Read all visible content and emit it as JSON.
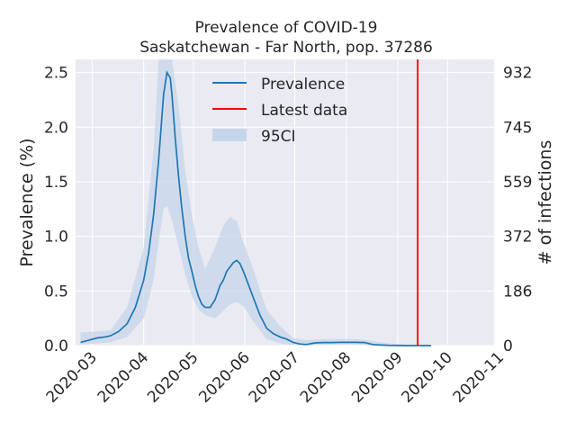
{
  "chart_data": {
    "type": "line",
    "title": "Prevalence of COVID-19",
    "subtitle": "Saskatchewan - Far North, pop. 37286",
    "xlabel": "",
    "ylabel": "Prevalence (%)",
    "y2label": "# of infections",
    "xlim": [
      "2020-02-20",
      "2020-10-29"
    ],
    "ylim": [
      0,
      2.62
    ],
    "x_ticks": [
      "2020-03",
      "2020-04",
      "2020-05",
      "2020-06",
      "2020-07",
      "2020-08",
      "2020-09",
      "2020-10",
      "2020-11"
    ],
    "y_ticks": [
      "0.0",
      "0.5",
      "1.0",
      "1.5",
      "2.0",
      "2.5"
    ],
    "y2_ticks": [
      "0",
      "186",
      "372",
      "559",
      "745",
      "932"
    ],
    "grid": true,
    "legend": {
      "placement": "top-center",
      "entries": [
        {
          "label": "Prevalence",
          "color": "#1f77b4",
          "kind": "line"
        },
        {
          "label": "Latest data",
          "color": "#ff0000",
          "kind": "line"
        },
        {
          "label": "95CI",
          "color": "#c6d6ea",
          "kind": "patch"
        }
      ]
    },
    "latest_data_x": "2020-09-13",
    "series": [
      {
        "name": "Prevalence",
        "color": "#1f77b4",
        "x": [
          "2020-02-23",
          "2020-02-28",
          "2020-03-04",
          "2020-03-09",
          "2020-03-12",
          "2020-03-17",
          "2020-03-22",
          "2020-03-27",
          "2020-04-01",
          "2020-04-04",
          "2020-04-07",
          "2020-04-10",
          "2020-04-13",
          "2020-04-15",
          "2020-04-17",
          "2020-04-18",
          "2020-04-19",
          "2020-04-20",
          "2020-04-22",
          "2020-04-24",
          "2020-04-26",
          "2020-04-28",
          "2020-04-30",
          "2020-05-02",
          "2020-05-04",
          "2020-05-06",
          "2020-05-08",
          "2020-05-11",
          "2020-05-14",
          "2020-05-17",
          "2020-05-19",
          "2020-05-21",
          "2020-05-23",
          "2020-05-25",
          "2020-05-27",
          "2020-05-29",
          "2020-05-31",
          "2020-06-02",
          "2020-06-04",
          "2020-06-06",
          "2020-06-08",
          "2020-06-10",
          "2020-06-12",
          "2020-06-14",
          "2020-06-18",
          "2020-06-22",
          "2020-06-26",
          "2020-06-30",
          "2020-07-04",
          "2020-07-08",
          "2020-07-13",
          "2020-07-18",
          "2020-07-23",
          "2020-07-28",
          "2020-08-02",
          "2020-08-07",
          "2020-08-12",
          "2020-08-17",
          "2020-08-22",
          "2020-08-27",
          "2020-09-01",
          "2020-09-06",
          "2020-09-11",
          "2020-09-16",
          "2020-09-21"
        ],
        "values": [
          0.03,
          0.05,
          0.07,
          0.08,
          0.09,
          0.13,
          0.2,
          0.35,
          0.6,
          0.85,
          1.2,
          1.7,
          2.3,
          2.5,
          2.45,
          2.3,
          2.1,
          1.9,
          1.55,
          1.25,
          1.0,
          0.8,
          0.68,
          0.55,
          0.45,
          0.38,
          0.35,
          0.35,
          0.42,
          0.55,
          0.6,
          0.68,
          0.72,
          0.76,
          0.78,
          0.75,
          0.68,
          0.6,
          0.52,
          0.44,
          0.36,
          0.28,
          0.22,
          0.16,
          0.11,
          0.08,
          0.06,
          0.03,
          0.015,
          0.01,
          0.025,
          0.028,
          0.028,
          0.03,
          0.03,
          0.03,
          0.028,
          0.01,
          0.005,
          0.002,
          0.001,
          0.0,
          0.0,
          0.0,
          0.0
        ]
      }
    ],
    "ci_band": {
      "name": "95CI",
      "color": "#c6d6ea",
      "x": [
        "2020-02-23",
        "2020-03-04",
        "2020-03-12",
        "2020-03-22",
        "2020-04-01",
        "2020-04-07",
        "2020-04-10",
        "2020-04-13",
        "2020-04-15",
        "2020-04-18",
        "2020-04-22",
        "2020-04-26",
        "2020-04-30",
        "2020-05-04",
        "2020-05-08",
        "2020-05-14",
        "2020-05-19",
        "2020-05-23",
        "2020-05-27",
        "2020-05-31",
        "2020-06-06",
        "2020-06-14",
        "2020-06-22",
        "2020-06-30",
        "2020-07-08",
        "2020-07-18",
        "2020-07-28",
        "2020-08-07",
        "2020-08-17",
        "2020-08-27",
        "2020-09-06"
      ],
      "lower": [
        0.01,
        0.02,
        0.03,
        0.08,
        0.25,
        0.6,
        0.95,
        1.25,
        1.28,
        1.15,
        0.9,
        0.65,
        0.45,
        0.33,
        0.28,
        0.25,
        0.32,
        0.38,
        0.4,
        0.36,
        0.22,
        0.06,
        0.02,
        0.005,
        0.002,
        0.005,
        0.01,
        0.01,
        0.0,
        0.0,
        0.0
      ],
      "upper": [
        0.12,
        0.13,
        0.14,
        0.35,
        0.9,
        1.8,
        2.62,
        2.62,
        2.62,
        2.62,
        2.2,
        1.6,
        1.2,
        0.9,
        0.7,
        0.9,
        1.1,
        1.18,
        1.14,
        0.95,
        0.7,
        0.33,
        0.18,
        0.07,
        0.05,
        0.06,
        0.06,
        0.06,
        0.04,
        0.02,
        0.01
      ]
    }
  }
}
